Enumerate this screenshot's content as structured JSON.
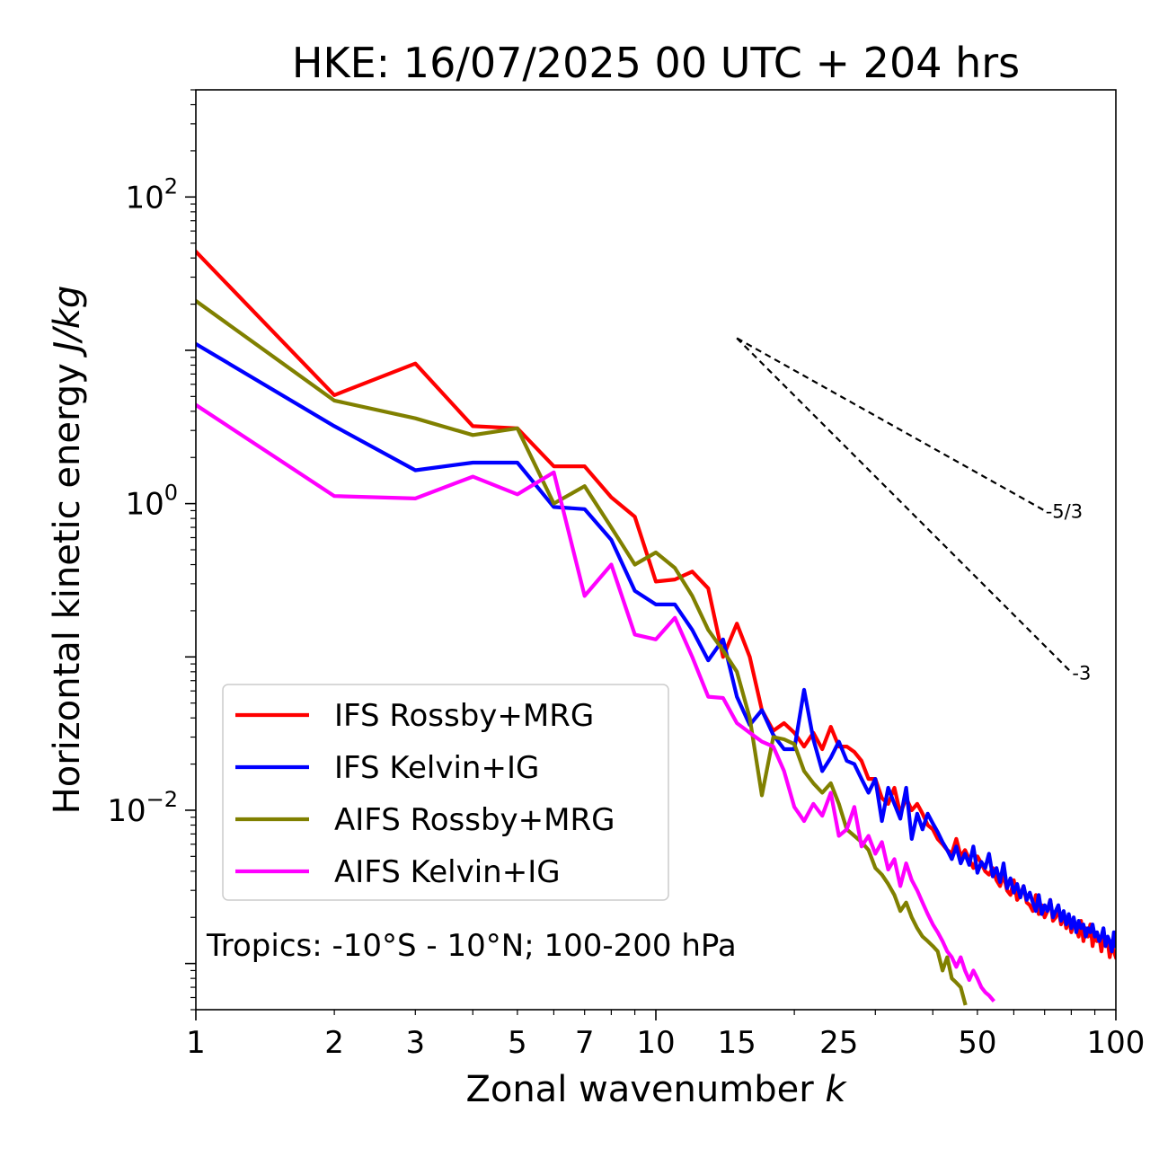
{
  "chart_data": {
    "type": "line",
    "title": "HKE: 16/07/2025 00 UTC + 204 hrs",
    "xlabel_main": "Zonal wavenumber ",
    "xlabel_italic": "k",
    "ylabel_main": "Horizontal kinetic energy ",
    "ylabel_italic": "J/kg",
    "x_scale": "log",
    "y_scale": "log",
    "xlim": [
      1,
      100
    ],
    "ylim": [
      0.0005,
      500
    ],
    "grid": false,
    "legend_position": "lower-left",
    "x_ticks": [
      {
        "value": 1,
        "label": "1"
      },
      {
        "value": 2,
        "label": "2"
      },
      {
        "value": 3,
        "label": "3"
      },
      {
        "value": 5,
        "label": "5"
      },
      {
        "value": 7,
        "label": "7"
      },
      {
        "value": 10,
        "label": "10"
      },
      {
        "value": 15,
        "label": "15"
      },
      {
        "value": 25,
        "label": "25"
      },
      {
        "value": 50,
        "label": "50"
      },
      {
        "value": 100,
        "label": "100"
      }
    ],
    "y_ticks": [
      {
        "value": 100,
        "base": "10",
        "exp": "2"
      },
      {
        "value": 1,
        "base": "10",
        "exp": "0"
      },
      {
        "value": 0.01,
        "base": "10",
        "exp": "−2"
      }
    ],
    "annotation": "Tropics: -10°S - 10°N; 100-200 hPa",
    "reference_slopes": [
      {
        "label": "-5/3",
        "x": [
          15,
          70
        ],
        "y": [
          12,
          0.9
        ]
      },
      {
        "label": "-3",
        "x": [
          15,
          80
        ],
        "y": [
          12,
          0.0794
        ]
      }
    ],
    "series": [
      {
        "name": "IFS Rossby+MRG",
        "color": "#ff0000",
        "x": [
          1,
          2,
          3,
          4,
          5,
          6,
          7,
          8,
          9,
          10,
          11,
          12,
          13,
          14,
          15,
          16,
          17,
          18,
          19,
          20,
          21,
          22,
          23,
          24,
          25,
          26,
          27,
          28,
          29,
          30,
          31,
          32,
          33,
          34,
          35,
          36,
          37,
          38,
          39,
          40,
          41,
          42,
          43,
          44,
          45,
          46,
          47,
          48,
          49,
          50,
          51,
          52,
          53,
          54,
          55,
          56,
          57,
          58,
          59,
          60,
          61,
          62,
          63,
          64,
          65,
          66,
          67,
          68,
          69,
          70,
          71,
          72,
          73,
          74,
          75,
          76,
          77,
          78,
          79,
          80,
          81,
          82,
          83,
          84,
          85,
          86,
          87,
          88,
          89,
          90,
          91,
          92,
          93,
          94,
          95,
          96,
          97,
          98,
          99,
          100
        ],
        "values": [
          44,
          5.1,
          8.2,
          3.2,
          3.1,
          1.75,
          1.75,
          1.1,
          0.82,
          0.31,
          0.32,
          0.36,
          0.28,
          0.1,
          0.165,
          0.1,
          0.045,
          0.033,
          0.037,
          0.032,
          0.026,
          0.032,
          0.025,
          0.035,
          0.026,
          0.026,
          0.024,
          0.021,
          0.016,
          0.016,
          0.012,
          0.011,
          0.014,
          0.0095,
          0.012,
          0.01,
          0.011,
          0.0095,
          0.008,
          0.0075,
          0.0065,
          0.006,
          0.0055,
          0.0052,
          0.0065,
          0.005,
          0.0055,
          0.0048,
          0.0042,
          0.005,
          0.0045,
          0.004,
          0.0038,
          0.0042,
          0.0035,
          0.0032,
          0.0038,
          0.003,
          0.0028,
          0.0035,
          0.0026,
          0.0028,
          0.0032,
          0.0025,
          0.0024,
          0.0022,
          0.0028,
          0.0021,
          0.0024,
          0.002,
          0.0022,
          0.0026,
          0.0019,
          0.002,
          0.0023,
          0.0018,
          0.0021,
          0.0017,
          0.002,
          0.0016,
          0.0019,
          0.0017,
          0.0015,
          0.0019,
          0.0014,
          0.0017,
          0.0015,
          0.0018,
          0.0013,
          0.0016,
          0.0014,
          0.0015,
          0.0012,
          0.0015,
          0.0013,
          0.0014,
          0.0011,
          0.0013,
          0.0012,
          0.0011
        ]
      },
      {
        "name": "IFS Kelvin+IG",
        "color": "#0000ff",
        "x": [
          1,
          2,
          3,
          4,
          5,
          6,
          7,
          8,
          9,
          10,
          11,
          12,
          13,
          14,
          15,
          16,
          17,
          18,
          19,
          20,
          21,
          22,
          23,
          24,
          25,
          26,
          27,
          28,
          29,
          30,
          31,
          32,
          33,
          34,
          35,
          36,
          37,
          38,
          39,
          40,
          41,
          42,
          43,
          44,
          45,
          46,
          47,
          48,
          49,
          50,
          51,
          52,
          53,
          54,
          55,
          56,
          57,
          58,
          59,
          60,
          61,
          62,
          63,
          64,
          65,
          66,
          67,
          68,
          69,
          70,
          71,
          72,
          73,
          74,
          75,
          76,
          77,
          78,
          79,
          80,
          81,
          82,
          83,
          84,
          85,
          86,
          87,
          88,
          89,
          90,
          91,
          92,
          93,
          94,
          95,
          96,
          97,
          98,
          99,
          100
        ],
        "values": [
          11,
          3.2,
          1.65,
          1.85,
          1.85,
          0.95,
          0.92,
          0.58,
          0.27,
          0.22,
          0.22,
          0.15,
          0.095,
          0.13,
          0.055,
          0.036,
          0.045,
          0.031,
          0.025,
          0.025,
          0.061,
          0.029,
          0.018,
          0.022,
          0.028,
          0.021,
          0.02,
          0.016,
          0.013,
          0.016,
          0.0085,
          0.014,
          0.011,
          0.0088,
          0.014,
          0.0065,
          0.0095,
          0.0075,
          0.0095,
          0.0082,
          0.0072,
          0.0062,
          0.0055,
          0.0048,
          0.0058,
          0.0045,
          0.0052,
          0.0044,
          0.0058,
          0.0039,
          0.0046,
          0.0042,
          0.0052,
          0.0037,
          0.0042,
          0.0034,
          0.0045,
          0.0031,
          0.0036,
          0.0029,
          0.0033,
          0.0027,
          0.0032,
          0.0026,
          0.0029,
          0.0025,
          0.0022,
          0.0028,
          0.0021,
          0.0024,
          0.0022,
          0.0026,
          0.002,
          0.0022,
          0.0024,
          0.0019,
          0.0022,
          0.0018,
          0.0021,
          0.0017,
          0.002,
          0.0016,
          0.0019,
          0.0017,
          0.0018,
          0.0015,
          0.0017,
          0.0016,
          0.0018,
          0.0015,
          0.0016,
          0.0014,
          0.0015,
          0.0017,
          0.0013,
          0.0015,
          0.0014,
          0.0012,
          0.0016,
          0.0013
        ]
      },
      {
        "name": "AIFS Rossby+MRG",
        "color": "#808000",
        "x": [
          1,
          2,
          3,
          4,
          5,
          6,
          7,
          8,
          9,
          10,
          11,
          12,
          13,
          14,
          15,
          16,
          17,
          18,
          19,
          20,
          21,
          22,
          23,
          24,
          25,
          26,
          27,
          28,
          29,
          30,
          31,
          32,
          33,
          34,
          35,
          36,
          37,
          38,
          39,
          40,
          41,
          42,
          43,
          44,
          45,
          46,
          47
        ],
        "values": [
          21,
          4.7,
          3.6,
          2.8,
          3.1,
          1,
          1.3,
          0.7,
          0.4,
          0.48,
          0.38,
          0.25,
          0.15,
          0.11,
          0.08,
          0.04,
          0.0125,
          0.03,
          0.029,
          0.027,
          0.018,
          0.015,
          0.013,
          0.015,
          0.011,
          0.0075,
          0.0068,
          0.0062,
          0.0055,
          0.0042,
          0.0038,
          0.0033,
          0.0028,
          0.0022,
          0.0025,
          0.002,
          0.0017,
          0.0015,
          0.0014,
          0.0013,
          0.0012,
          0.0009,
          0.0011,
          0.0008,
          0.00075,
          0.0007,
          0.00055
        ]
      },
      {
        "name": "AIFS Kelvin+IG",
        "color": "#ff00ff",
        "x": [
          1,
          2,
          3,
          4,
          5,
          6,
          7,
          8,
          9,
          10,
          11,
          12,
          13,
          14,
          15,
          16,
          17,
          18,
          19,
          20,
          21,
          22,
          23,
          24,
          25,
          26,
          27,
          28,
          29,
          30,
          31,
          32,
          33,
          34,
          35,
          36,
          37,
          38,
          39,
          40,
          41,
          42,
          43,
          44,
          45,
          46,
          47,
          48,
          49,
          50,
          51,
          52,
          53,
          54
        ],
        "values": [
          4.4,
          1.12,
          1.08,
          1.5,
          1.15,
          1.6,
          0.25,
          0.4,
          0.14,
          0.13,
          0.18,
          0.1,
          0.055,
          0.054,
          0.037,
          0.032,
          0.028,
          0.026,
          0.018,
          0.0105,
          0.0085,
          0.011,
          0.0092,
          0.013,
          0.0068,
          0.0075,
          0.0105,
          0.0058,
          0.0068,
          0.0052,
          0.0062,
          0.0041,
          0.0048,
          0.0032,
          0.0045,
          0.0035,
          0.003,
          0.0025,
          0.0021,
          0.0018,
          0.0016,
          0.0014,
          0.0012,
          0.0011,
          0.00095,
          0.0011,
          0.0009,
          0.00078,
          0.0009,
          0.0008,
          0.0007,
          0.00065,
          0.00062,
          0.00058
        ]
      }
    ]
  }
}
